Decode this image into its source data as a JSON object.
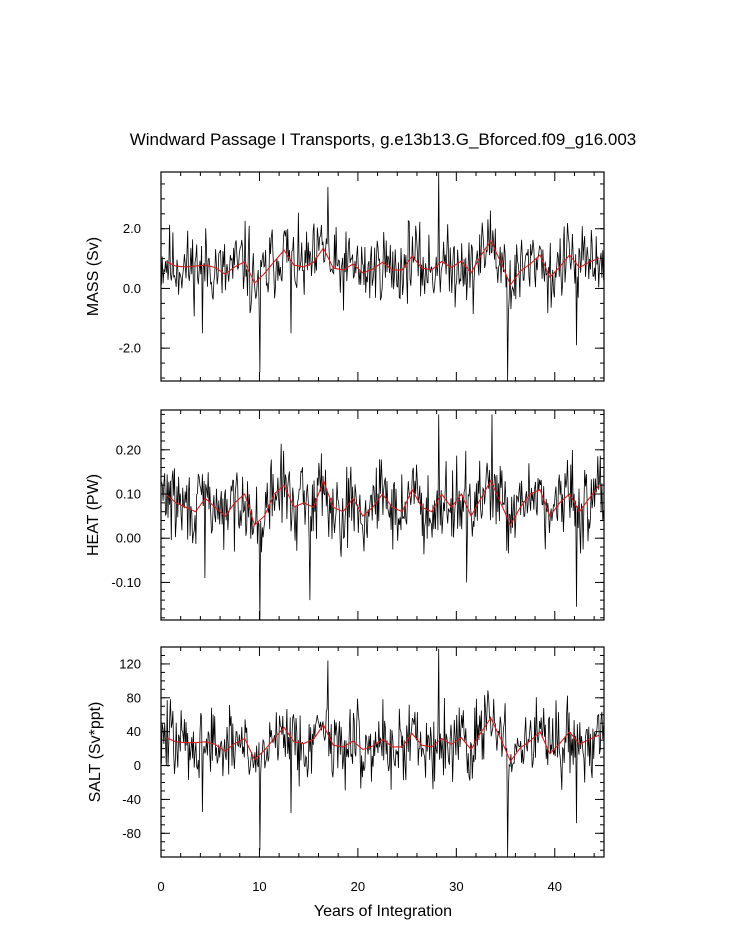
{
  "chart_data": {
    "type": "line",
    "title": "Windward Passage I Transports, g.e13b13.G_Bforced.f09_g16.003",
    "xlabel": "Years of Integration",
    "xlim": [
      0,
      45
    ],
    "xticks": [
      0,
      10,
      20,
      30,
      40
    ],
    "xtick_labels": [
      "0",
      "10",
      "20",
      "30",
      "40"
    ],
    "colors": {
      "monthly": "#000000",
      "annual_mean": "#d41c1c",
      "axes": "#000000"
    },
    "panels": [
      {
        "name": "mass",
        "ylabel": "MASS (Sv)",
        "ylim": [
          -3.1,
          3.9
        ],
        "yticks": [
          -2.0,
          0.0,
          2.0
        ],
        "ytick_labels": [
          "-2.0",
          "0.0",
          "2.0"
        ],
        "annual_mean": [
          0.9,
          0.75,
          0.72,
          0.75,
          0.78,
          0.7,
          0.48,
          0.72,
          0.9,
          0.18,
          0.5,
          0.9,
          1.28,
          0.78,
          0.72,
          0.88,
          1.35,
          0.68,
          0.62,
          0.82,
          0.52,
          0.65,
          0.88,
          0.62,
          0.62,
          1.08,
          0.68,
          0.62,
          0.9,
          0.7,
          0.92,
          0.52,
          1.1,
          1.6,
          0.9,
          0.12,
          0.58,
          0.82,
          1.12,
          0.38,
          0.72,
          1.12,
          0.7,
          0.88,
          1.02
        ],
        "seed": 11,
        "spikes": [
          [
            16.9,
            3.4
          ],
          [
            28.2,
            3.9
          ],
          [
            35.2,
            -3.1
          ],
          [
            10.0,
            -2.8
          ],
          [
            4.2,
            -1.5
          ],
          [
            42.2,
            -1.9
          ],
          [
            13.2,
            -1.5
          ]
        ]
      },
      {
        "name": "heat",
        "ylabel": "HEAT (PW)",
        "ylim": [
          -0.185,
          0.29
        ],
        "yticks": [
          -0.1,
          0.0,
          0.1,
          0.2
        ],
        "ytick_labels": [
          "-0.10",
          "0.00",
          "0.10",
          "0.20"
        ],
        "annual_mean": [
          0.1,
          0.08,
          0.07,
          0.06,
          0.09,
          0.07,
          0.05,
          0.08,
          0.1,
          0.03,
          0.05,
          0.1,
          0.12,
          0.07,
          0.08,
          0.07,
          0.13,
          0.07,
          0.06,
          0.09,
          0.05,
          0.07,
          0.1,
          0.07,
          0.06,
          0.11,
          0.07,
          0.06,
          0.1,
          0.07,
          0.1,
          0.05,
          0.09,
          0.13,
          0.08,
          0.03,
          0.07,
          0.1,
          0.11,
          0.05,
          0.08,
          0.1,
          0.06,
          0.09,
          0.12
        ],
        "seed": 29,
        "spikes": [
          [
            28.2,
            0.28
          ],
          [
            33.6,
            0.28
          ],
          [
            10.0,
            -0.185
          ],
          [
            15.1,
            -0.14
          ],
          [
            42.2,
            -0.155
          ],
          [
            4.4,
            -0.09
          ],
          [
            31.0,
            -0.1
          ]
        ]
      },
      {
        "name": "salt",
        "ylabel": "SALT (Sv*ppt)",
        "ylim": [
          -108,
          140
        ],
        "yticks": [
          -80,
          -40,
          0,
          40,
          80,
          120
        ],
        "ytick_labels": [
          "-80",
          "-40",
          "0",
          "40",
          "80",
          "120"
        ],
        "annual_mean": [
          33,
          28,
          27,
          27,
          28,
          25,
          17,
          26,
          32,
          7,
          18,
          32,
          45,
          28,
          26,
          31,
          48,
          24,
          22,
          29,
          19,
          23,
          31,
          22,
          22,
          38,
          24,
          22,
          32,
          25,
          33,
          19,
          39,
          56,
          32,
          5,
          21,
          29,
          40,
          14,
          26,
          40,
          25,
          31,
          36
        ],
        "seed": 47,
        "spikes": [
          [
            28.2,
            138
          ],
          [
            16.9,
            124
          ],
          [
            35.2,
            -108
          ],
          [
            10.0,
            -100
          ],
          [
            4.2,
            -55
          ],
          [
            42.2,
            -68
          ],
          [
            13.2,
            -56
          ]
        ]
      }
    ]
  }
}
